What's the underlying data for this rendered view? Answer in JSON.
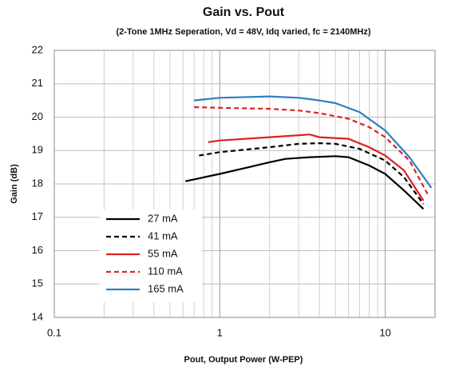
{
  "chart_data": {
    "type": "line",
    "title": "Gain vs. Pout",
    "subtitle": "(2-Tone 1MHz Seperation, Vd = 48V, Idq varied, fc = 2140MHz)",
    "x_label": "Pout, Output Power (W-PEP)",
    "y_label": "Gain (dB)",
    "xscale": "log",
    "xlim": [
      0.1,
      20
    ],
    "xticks": [
      0.1,
      1,
      10
    ],
    "xminorticks": [
      0.2,
      0.3,
      0.4,
      0.5,
      0.6,
      0.7,
      0.8,
      0.9,
      2,
      3,
      4,
      5,
      6,
      7,
      8,
      9,
      20
    ],
    "ylim": [
      14,
      22
    ],
    "yticks": [
      14,
      15,
      16,
      17,
      18,
      19,
      20,
      21,
      22
    ],
    "grid": true,
    "legend": "lower left",
    "series": [
      {
        "name": "27 mA",
        "color": "#000000",
        "dash": false,
        "x": [
          0.62,
          1,
          1.5,
          2,
          2.5,
          3.5,
          5,
          6,
          8,
          10,
          13,
          17
        ],
        "values": [
          18.08,
          18.3,
          18.5,
          18.65,
          18.75,
          18.8,
          18.83,
          18.8,
          18.55,
          18.3,
          17.8,
          17.25
        ]
      },
      {
        "name": "41 mA",
        "color": "#000000",
        "dash": true,
        "x": [
          0.75,
          1,
          2,
          3,
          4,
          5,
          7,
          10,
          13,
          17
        ],
        "values": [
          18.85,
          18.95,
          19.1,
          19.2,
          19.22,
          19.2,
          19.05,
          18.7,
          18.2,
          17.4
        ]
      },
      {
        "name": "55 mA",
        "color": "#e02020",
        "dash": false,
        "x": [
          0.85,
          1,
          2,
          3.5,
          4,
          6,
          8,
          10,
          13,
          17
        ],
        "values": [
          19.25,
          19.3,
          19.4,
          19.48,
          19.4,
          19.35,
          19.1,
          18.85,
          18.4,
          17.5
        ]
      },
      {
        "name": "110 mA",
        "color": "#e02020",
        "dash": true,
        "x": [
          0.7,
          1,
          2,
          3,
          4,
          6,
          8,
          10,
          14,
          18
        ],
        "values": [
          20.3,
          20.28,
          20.25,
          20.2,
          20.12,
          19.95,
          19.7,
          19.4,
          18.7,
          17.7
        ]
      },
      {
        "name": "165 mA",
        "color": "#2f7fc1",
        "dash": false,
        "x": [
          0.7,
          1,
          2,
          3,
          4,
          5,
          7,
          10,
          14,
          19
        ],
        "values": [
          20.5,
          20.58,
          20.62,
          20.58,
          20.5,
          20.42,
          20.15,
          19.6,
          18.8,
          17.88
        ]
      }
    ]
  }
}
